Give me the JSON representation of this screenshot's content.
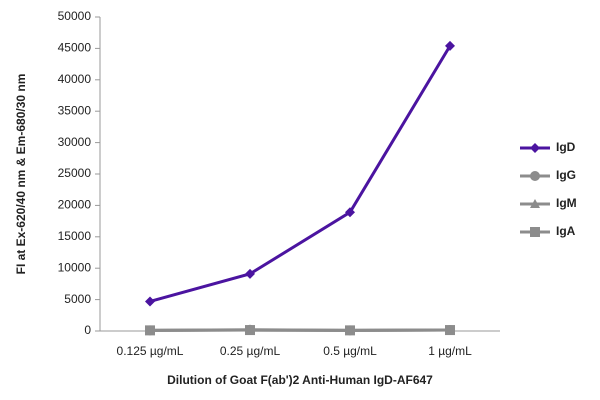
{
  "chart_data": {
    "type": "line",
    "x_label": "Dilution of Goat F(ab')2 Anti-Human IgD-AF647",
    "y_label": "FI at Ex-620/40 nm & Em-680/30 nm",
    "categories": [
      "0.125 µg/mL",
      "0.25 µg/mL",
      "0.5 µg/mL",
      "1 µg/mL"
    ],
    "series": [
      {
        "name": "IgD",
        "color": "#4b14a0",
        "marker": "diamond",
        "values": [
          4700,
          9100,
          18900,
          45400
        ]
      },
      {
        "name": "IgG",
        "color": "#8c8c8c",
        "marker": "circle",
        "values": [
          100,
          200,
          100,
          150
        ]
      },
      {
        "name": "IgM",
        "color": "#8c8c8c",
        "marker": "triangle",
        "values": [
          100,
          150,
          100,
          150
        ]
      },
      {
        "name": "IgA",
        "color": "#8c8c8c",
        "marker": "square",
        "values": [
          100,
          150,
          100,
          150
        ]
      }
    ],
    "ylim": [
      0,
      50000
    ],
    "yticks": [
      0,
      5000,
      10000,
      15000,
      20000,
      25000,
      30000,
      35000,
      40000,
      45000,
      50000
    ],
    "legend": "right"
  }
}
